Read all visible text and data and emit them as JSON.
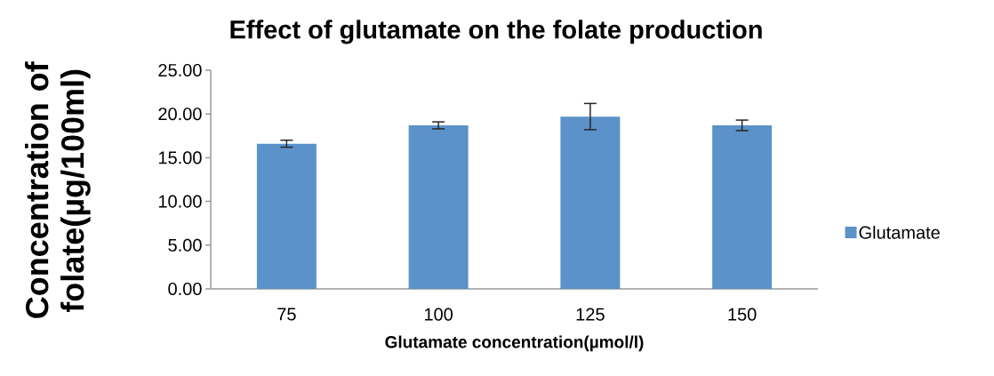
{
  "chart_data": {
    "type": "bar",
    "title": "Effect of glutamate on the folate production",
    "xlabel": "Glutamate concentration(µmol/l)",
    "ylabel": "Concentration of folate(µg/100ml)",
    "categories": [
      "75",
      "100",
      "125",
      "150"
    ],
    "series": [
      {
        "name": "Glutamate",
        "color": "#5b92c9",
        "values": [
          16.6,
          18.7,
          19.7,
          18.7
        ],
        "errors": [
          0.4,
          0.4,
          1.5,
          0.6
        ]
      }
    ],
    "ylim": [
      0,
      25
    ],
    "yticks": [
      {
        "value": 0,
        "label": "0.00"
      },
      {
        "value": 5,
        "label": "5.00"
      },
      {
        "value": 10,
        "label": "10.00"
      },
      {
        "value": 15,
        "label": "15.00"
      },
      {
        "value": 20,
        "label": "20.00"
      },
      {
        "value": 25,
        "label": "25.00"
      }
    ],
    "grid": false,
    "legend": "right"
  }
}
